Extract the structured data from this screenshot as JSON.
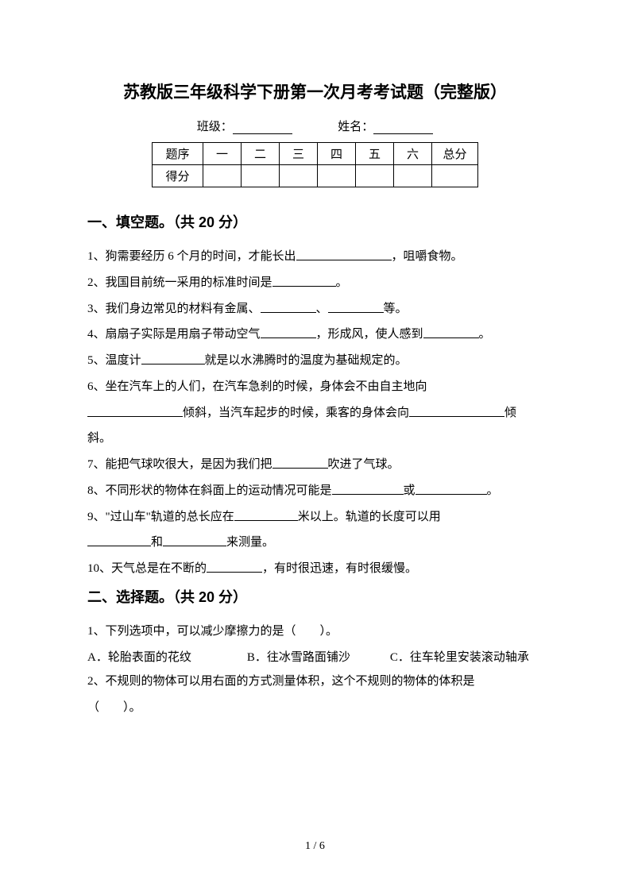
{
  "title": "苏教版三年级科学下册第一次月考考试题（完整版）",
  "info": {
    "class_label": "班级：",
    "name_label": "姓名："
  },
  "score_table": {
    "row1_label": "题序",
    "row2_label": "得分",
    "cols": [
      "一",
      "二",
      "三",
      "四",
      "五",
      "六"
    ],
    "total_label": "总分"
  },
  "section1": {
    "heading": "一、填空题。（共 20 分）",
    "q1_a": "1、狗需要经历 6 个月的时间，才能长出",
    "q1_b": "，咀嚼食物。",
    "q2_a": "2、我国目前统一采用的标准时间是",
    "q2_b": "。",
    "q3_a": "3、我们身边常见的材料有金属、",
    "q3_b": "、",
    "q3_c": "等。",
    "q4_a": "4、扇扇子实际是用扇子带动空气",
    "q4_b": "，形成风，使人感到",
    "q4_c": "。",
    "q5_a": "5、温度计",
    "q5_b": "就是以水沸腾时的温度为基础规定的。",
    "q6_a": "6、坐在汽车上的人们，在汽车急刹的时候，身体会不由自主地向",
    "q6_b": "倾斜，当汽车起步的时候，乘客的身体会向",
    "q6_c": "倾",
    "q6_d": "斜。",
    "q7_a": "7、能把气球吹很大，是因为我们把",
    "q7_b": "吹进了气球。",
    "q8_a": "8、不同形状的物体在斜面上的运动情况可能是",
    "q8_b": "或",
    "q8_c": "。",
    "q9_a": "9、\"过山车\"轨道的总长应在",
    "q9_b": "米以上。轨道的长度可以用",
    "q9_c": "和",
    "q9_d": "来测量。",
    "q10_a": "10、天气总是在不断的",
    "q10_b": "，有时很迅速，有时很缓慢。"
  },
  "section2": {
    "heading": "二、选择题。（共 20 分）",
    "q1": "1、下列选项中，可以减少摩擦力的是（　　）。",
    "q1_optA": "A．轮胎表面的花纹",
    "q1_optB": "B．往冰雪路面铺沙",
    "q1_optC": "C．往车轮里安装滚动轴承",
    "q2_a": "2、不规则的物体可以用右面的方式测量体积，这个不规则的物体的体积是",
    "q2_b": "（　　）。"
  },
  "page_number": "1 / 6"
}
